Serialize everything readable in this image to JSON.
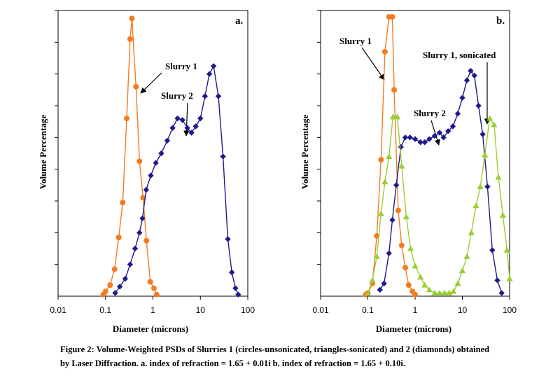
{
  "colors": {
    "slurry1": "#F47B20",
    "slurry2": "#1F1A8C",
    "slurry1_sonicated": "#9ACD32",
    "axis": "#000000"
  },
  "caption": {
    "line1": "Figure 2: Volume-Weighted PSDs of Slurries 1 (circles-unsonicated, triangles-sonicated) and 2 (diamonds) obtained",
    "line2": "by Laser Diffraction. a. index of refraction = 1.65 + 0.01i   b. index of refraction = 1.65 + 0.10i."
  },
  "chart_data": [
    {
      "type": "scatter",
      "panel_label": "a.",
      "xlabel": "Diameter (microns)",
      "ylabel": "Volume Percentage",
      "xscale": "log",
      "xlim": [
        0.01,
        100
      ],
      "xticks": [
        "0.01",
        "0.1",
        "1",
        "10",
        "100"
      ],
      "ylim": [
        0,
        9
      ],
      "y_tick_count": 9,
      "y_tick_labels": "none",
      "grid": false,
      "annotations": [
        "Slurry 1",
        "Slurry 2"
      ],
      "series": [
        {
          "marker": "circle",
          "color": "#F47B20",
          "x": [
            0.09,
            0.1,
            0.125,
            0.155,
            0.19,
            0.23,
            0.28,
            0.33,
            0.36,
            0.44,
            0.52,
            0.62,
            0.73,
            0.88,
            1.05,
            1.2
          ],
          "y": [
            0.05,
            0.15,
            0.35,
            0.85,
            1.85,
            2.95,
            5.6,
            8.1,
            8.75,
            6.6,
            4.25,
            3.1,
            1.75,
            0.45,
            0.25,
            0.05
          ]
        },
        {
          "marker": "diamond",
          "color": "#1F1A8C",
          "x": [
            0.16,
            0.2,
            0.26,
            0.33,
            0.42,
            0.52,
            0.6,
            0.72,
            0.9,
            1.15,
            1.5,
            2.0,
            2.6,
            3.3,
            4.2,
            5.3,
            6.5,
            8.0,
            10.0,
            12.5,
            15.5,
            19.0,
            24.0,
            30.0,
            38.0,
            46.0,
            55.0,
            63.0
          ],
          "y": [
            0.1,
            0.3,
            0.55,
            1.0,
            1.5,
            2.0,
            2.45,
            3.35,
            3.8,
            4.2,
            4.5,
            4.9,
            5.3,
            5.6,
            5.55,
            5.3,
            5.15,
            5.35,
            5.6,
            6.3,
            7.0,
            7.25,
            6.3,
            4.4,
            1.8,
            0.75,
            0.25,
            0.05
          ]
        }
      ]
    },
    {
      "type": "scatter",
      "panel_label": "b.",
      "xlabel": "Diameter (microns)",
      "ylabel": "Volume Percentage",
      "xscale": "log",
      "xlim": [
        0.01,
        100
      ],
      "xticks": [
        "0.01",
        "0.1",
        "1",
        "10",
        "100"
      ],
      "ylim": [
        0,
        9
      ],
      "y_tick_count": 9,
      "y_tick_labels": "none",
      "grid": false,
      "annotations": [
        "Slurry 1",
        "Slurry 2",
        "Slurry 1, sonicated"
      ],
      "series": [
        {
          "marker": "circle",
          "color": "#F47B20",
          "x": [
            0.09,
            0.1,
            0.125,
            0.155,
            0.19,
            0.23,
            0.28,
            0.33,
            0.36,
            0.44,
            0.52,
            0.62,
            0.73,
            0.88,
            1.0
          ],
          "y": [
            0.05,
            0.1,
            0.4,
            1.9,
            4.3,
            7.7,
            8.8,
            8.8,
            6.5,
            2.7,
            1.6,
            0.9,
            0.35,
            0.15,
            0.05
          ]
        },
        {
          "marker": "diamond",
          "color": "#1F1A8C",
          "x": [
            0.18,
            0.22,
            0.28,
            0.33,
            0.4,
            0.5,
            0.62,
            0.78,
            1.0,
            1.3,
            1.6,
            2.0,
            2.6,
            3.3,
            4.0,
            5.0,
            6.3,
            8.0,
            10.0,
            12.5,
            15.0,
            18.0,
            22.0,
            27.0,
            34.0,
            43.0,
            55.0,
            68.0
          ],
          "y": [
            0.2,
            0.4,
            1.35,
            2.4,
            3.5,
            4.7,
            5.0,
            5.0,
            4.95,
            4.85,
            4.85,
            4.95,
            5.05,
            5.15,
            5.0,
            5.2,
            5.35,
            5.75,
            6.25,
            6.8,
            7.1,
            6.95,
            6.0,
            5.1,
            3.45,
            1.45,
            0.5,
            0.1
          ]
        },
        {
          "marker": "triangle",
          "color": "#9ACD32",
          "x": [
            0.1,
            0.125,
            0.155,
            0.19,
            0.23,
            0.28,
            0.34,
            0.42,
            0.52,
            0.65,
            0.8,
            1.0,
            1.3,
            1.6,
            2.0,
            2.6,
            3.3,
            4.2,
            5.3,
            6.5,
            8.0,
            10.0,
            12.5,
            15.5,
            19.5,
            24.0,
            30.0,
            38.0,
            47.0,
            58.0,
            72.0,
            88.0,
            100.0
          ],
          "y": [
            0.1,
            0.5,
            1.25,
            2.6,
            3.6,
            4.4,
            5.65,
            5.65,
            4.1,
            2.5,
            1.5,
            0.95,
            0.6,
            0.35,
            0.2,
            0.1,
            0.1,
            0.1,
            0.1,
            0.15,
            0.4,
            0.8,
            1.25,
            2.0,
            2.85,
            3.45,
            4.45,
            5.6,
            5.4,
            3.75,
            2.55,
            1.45,
            0.55
          ]
        }
      ]
    }
  ]
}
